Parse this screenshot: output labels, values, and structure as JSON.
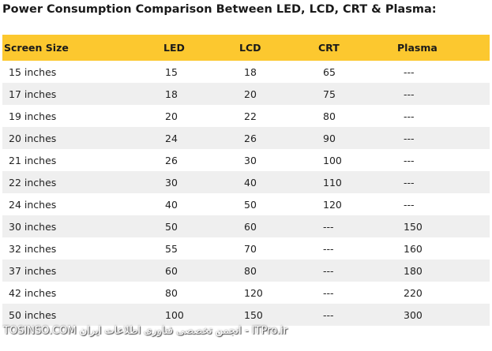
{
  "title": "Power Consumption Comparison Between LED, LCD, CRT & Plasma:",
  "table": {
    "headers": [
      "Screen Size",
      "LED",
      "LCD",
      "CRT",
      "Plasma"
    ],
    "rows": [
      [
        "15 inches",
        "15",
        "18",
        "65",
        "---"
      ],
      [
        "17 inches",
        "18",
        "20",
        "75",
        "---"
      ],
      [
        "19 inches",
        "20",
        "22",
        "80",
        "---"
      ],
      [
        "20 inches",
        "24",
        "26",
        "90",
        "---"
      ],
      [
        "21 inches",
        "26",
        "30",
        "100",
        "---"
      ],
      [
        "22 inches",
        "30",
        "40",
        "110",
        "---"
      ],
      [
        "24 inches",
        "40",
        "50",
        "120",
        "---"
      ],
      [
        "30 inches",
        "50",
        "60",
        "---",
        "150"
      ],
      [
        "32 inches",
        "55",
        "70",
        "---",
        "160"
      ],
      [
        "37 inches",
        "60",
        "80",
        "---",
        "180"
      ],
      [
        "42 inches",
        "80",
        "120",
        "---",
        "220"
      ],
      [
        "50 inches",
        "100",
        "150",
        "---",
        "300"
      ]
    ]
  },
  "watermark": "TOSINSO.COM انجمن تخصصی فناوری اطلاعات ایران - ITPro.ir",
  "colors": {
    "header_bg": "#fcc82f",
    "shaded_row_bg": "#efefef"
  }
}
